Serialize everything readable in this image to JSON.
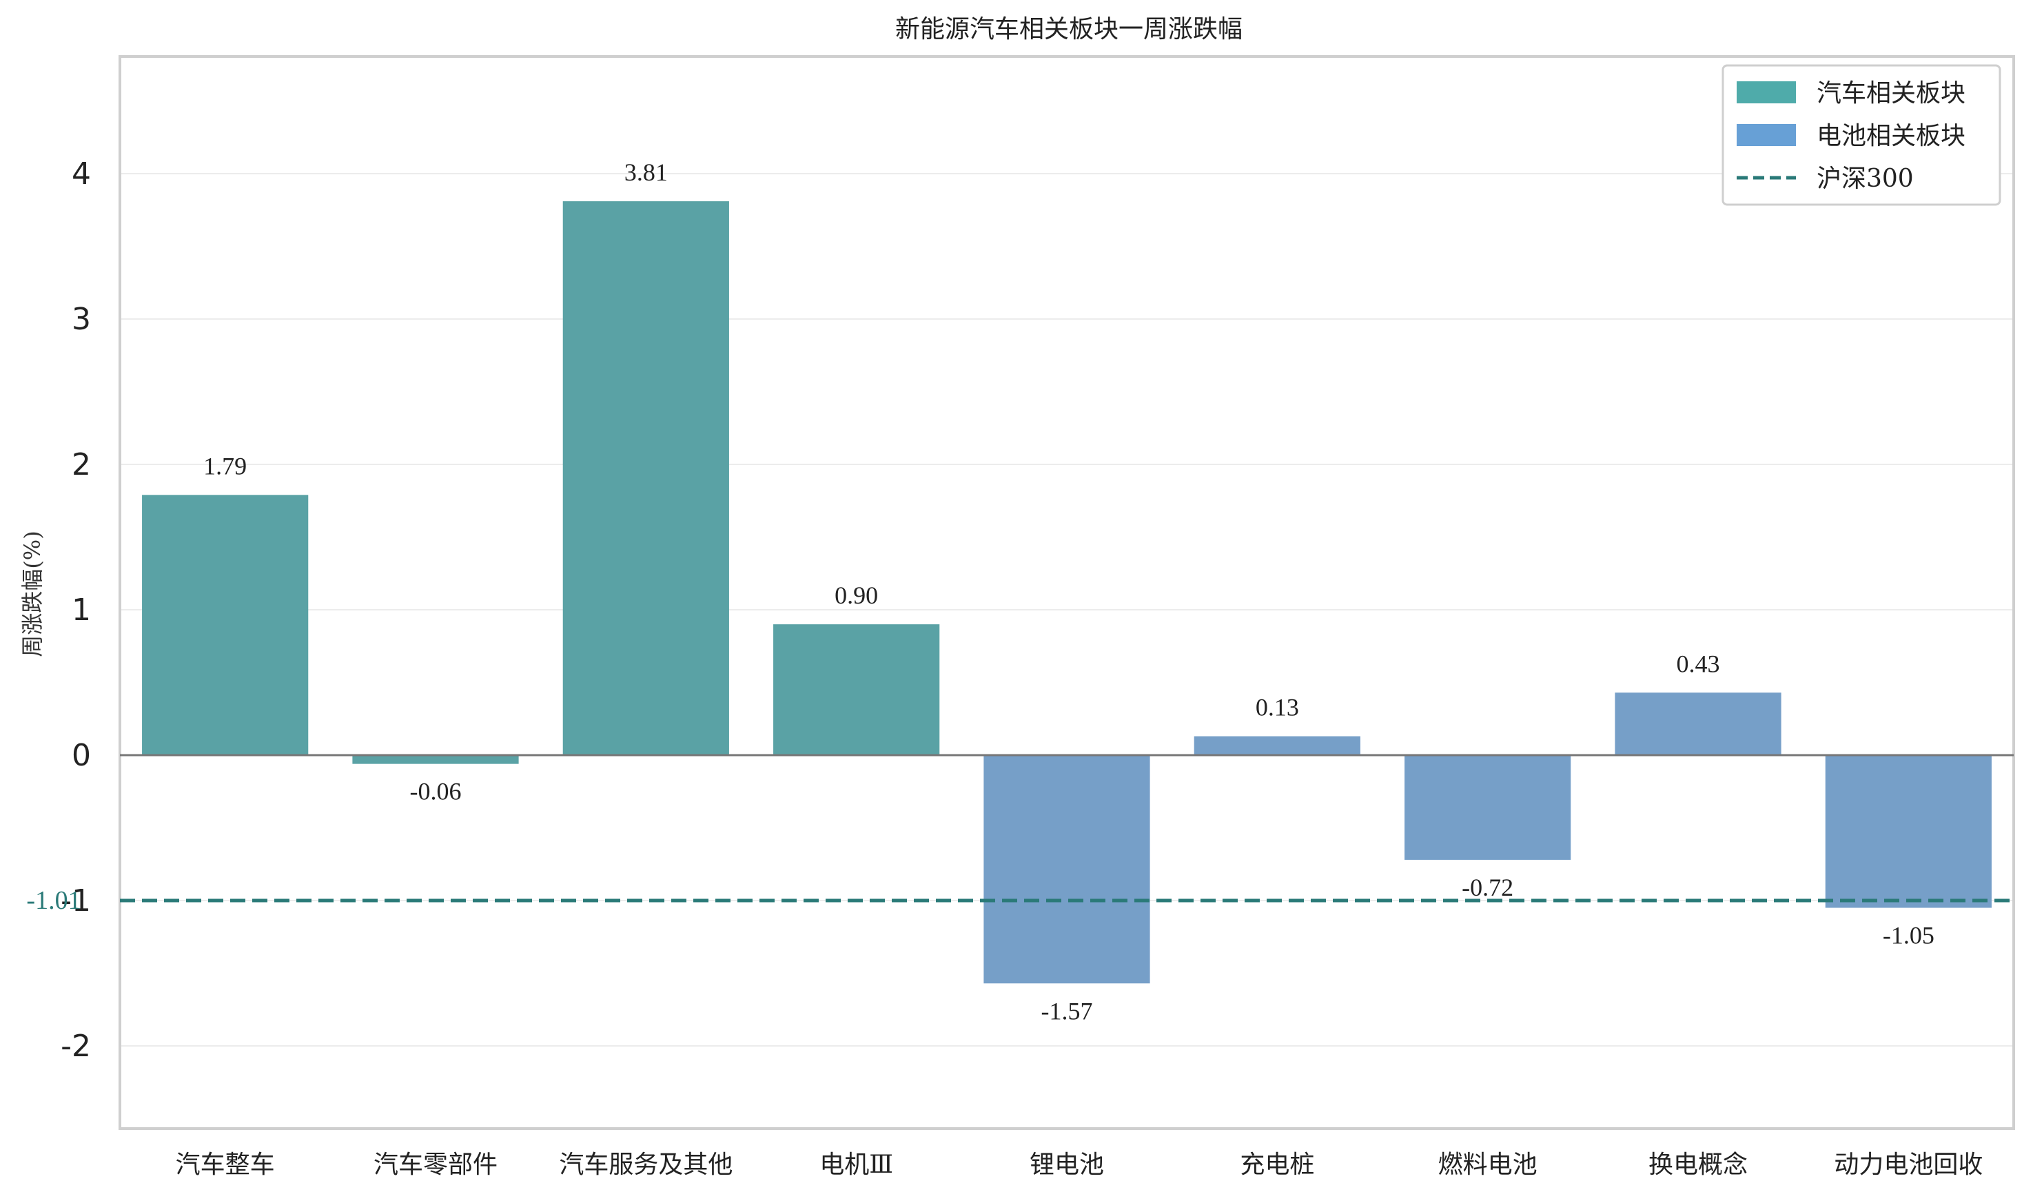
{
  "chart_data": {
    "type": "bar",
    "title": "新能源汽车相关板块一周涨跌幅",
    "ylabel": "周涨跌幅(%)",
    "xlabel": "",
    "categories": [
      "汽车整车",
      "汽车零部件",
      "汽车服务及其他",
      "电机Ⅲ",
      "锂电池",
      "充电桩",
      "燃料电池",
      "换电概念",
      "动力电池回收"
    ],
    "values": [
      1.79,
      -0.06,
      3.81,
      0.9,
      -1.57,
      0.13,
      -0.72,
      0.43,
      -1.05
    ],
    "value_labels": [
      "1.79",
      "-0.06",
      "3.81",
      "0.90",
      "-1.57",
      "0.13",
      "-0.72",
      "0.43",
      "-1.05"
    ],
    "groups": [
      "汽车相关板块",
      "汽车相关板块",
      "汽车相关板块",
      "汽车相关板块",
      "电池相关板块",
      "电池相关板块",
      "电池相关板块",
      "电池相关板块",
      "电池相关板块"
    ],
    "series": [
      {
        "name": "汽车相关板块",
        "color": "#5aa2a5"
      },
      {
        "name": "电池相关板块",
        "color": "#769fc8"
      }
    ],
    "reference_line": {
      "name": "沪深300",
      "value": -1.0,
      "label": "-1.01",
      "color": "#2a7a78",
      "style": "dashed"
    },
    "legend_colors": {
      "汽车相关板块": "#4fabaa",
      "电池相关板块": "#67a0d6"
    },
    "ylim": [
      -2.6,
      4.8
    ],
    "yticks": [
      -2,
      -1,
      0,
      1,
      2,
      3,
      4
    ],
    "ytick_labels": [
      "-2",
      "-1",
      "0",
      "1",
      "2",
      "3",
      "4"
    ],
    "grid": true,
    "legend_position": "top-right"
  }
}
